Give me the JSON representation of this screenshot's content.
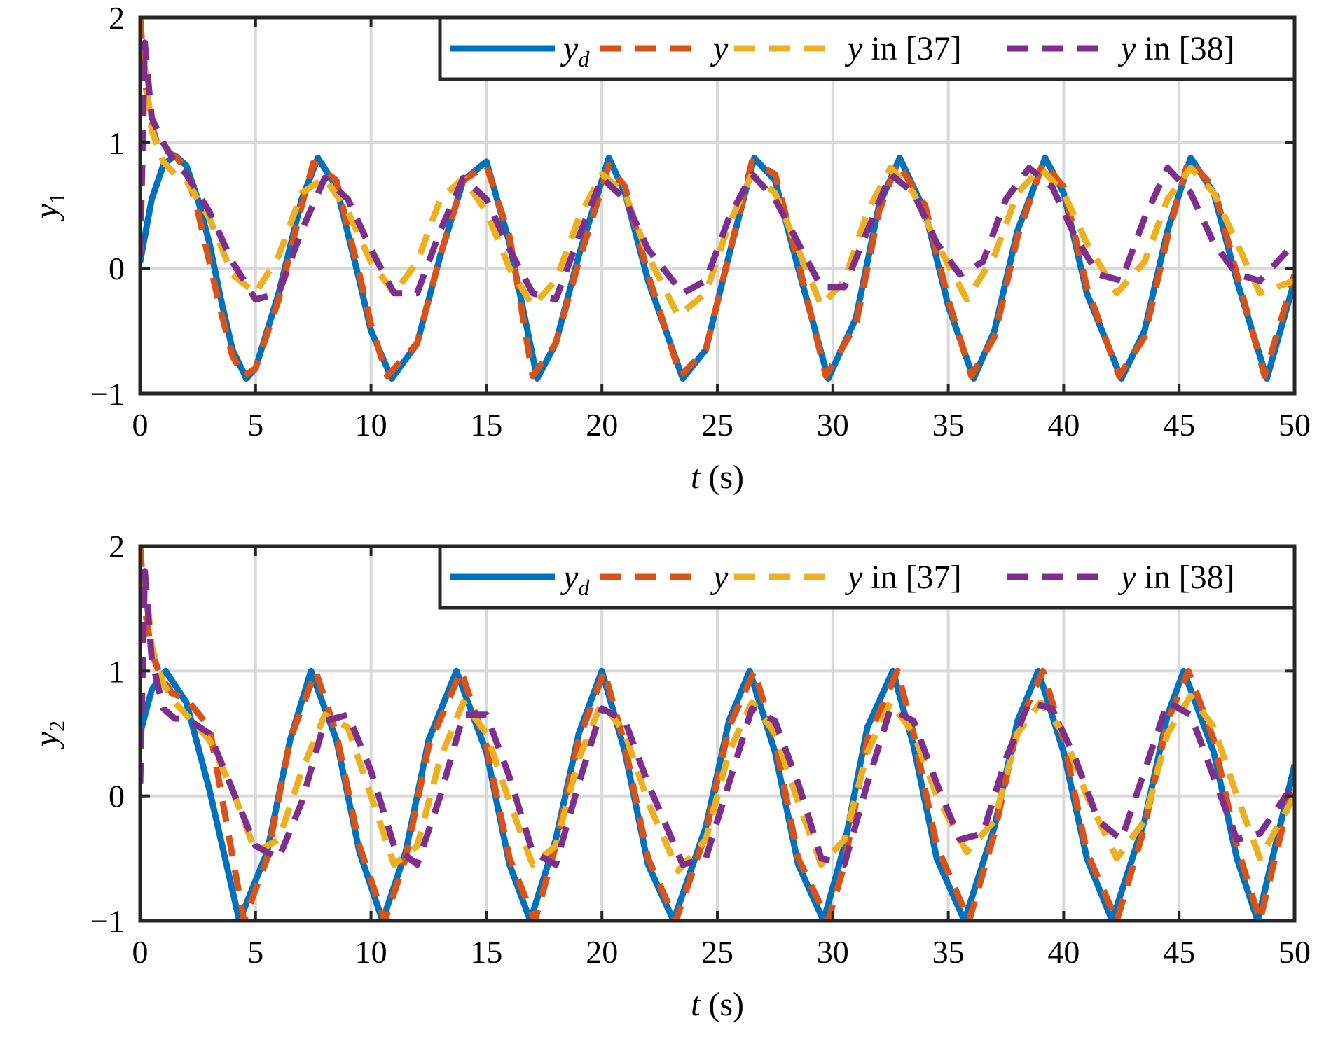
{
  "colors": {
    "y_d": "#0072BD",
    "y": "#D95319",
    "y37": "#EDB120",
    "y38": "#7E2F8E",
    "grid": "#d9d9d9",
    "axis": "#262626"
  },
  "chart_data": [
    {
      "type": "line",
      "xlabel": {
        "italic": "t",
        "rest": " (s)"
      },
      "ylabel": {
        "base": "y",
        "sub": "1"
      },
      "xlim": [
        0,
        50
      ],
      "ylim": [
        -1,
        2
      ],
      "xticks": [
        "0",
        "5",
        "10",
        "15",
        "20",
        "25",
        "30",
        "35",
        "40",
        "45",
        "50"
      ],
      "yticks": [
        "−1",
        "0",
        "1",
        "2"
      ],
      "grid": true,
      "legend_position": "top-right",
      "legend": [
        {
          "base": "y",
          "sub": "d",
          "suffix": ""
        },
        {
          "base": "y",
          "sub": "",
          "suffix": ""
        },
        {
          "base": "y",
          "sub": "",
          "suffix": " in [37]"
        },
        {
          "base": "y",
          "sub": "",
          "suffix": " in [38]"
        }
      ],
      "series": [
        {
          "key": "y_d",
          "x": [
            0,
            0.5,
            1,
            1.5,
            2,
            2.5,
            3,
            3.5,
            4,
            4.6,
            5,
            6,
            7,
            7.7,
            8.5,
            9.5,
            10,
            10.9,
            12,
            13,
            14,
            15,
            16,
            17.2,
            18,
            19,
            20.3,
            21,
            22,
            23.5,
            24.5,
            25.5,
            26.6,
            27.5,
            28.5,
            29.8,
            31,
            32,
            32.9,
            34,
            35,
            36.1,
            37,
            38,
            39.2,
            40,
            41,
            42.5,
            43.5,
            44.5,
            45.5,
            46.5,
            47.5,
            48.8,
            50
          ],
          "y": [
            0.05,
            0.55,
            0.82,
            0.9,
            0.82,
            0.55,
            0.2,
            -0.25,
            -0.65,
            -0.88,
            -0.8,
            -0.2,
            0.55,
            0.88,
            0.65,
            -0.1,
            -0.5,
            -0.88,
            -0.6,
            0.1,
            0.7,
            0.85,
            0.2,
            -0.88,
            -0.6,
            0.1,
            0.88,
            0.6,
            -0.1,
            -0.88,
            -0.65,
            0.1,
            0.88,
            0.7,
            0.0,
            -0.88,
            -0.4,
            0.5,
            0.88,
            0.45,
            -0.3,
            -0.88,
            -0.5,
            0.3,
            0.88,
            0.6,
            -0.2,
            -0.88,
            -0.5,
            0.3,
            0.88,
            0.6,
            -0.1,
            -0.88,
            -0.1
          ]
        },
        {
          "key": "y",
          "x": [
            0,
            0.2,
            0.5,
            0.8,
            1.2,
            1.6,
            2,
            2.5,
            3,
            3.5,
            4,
            4.5,
            5,
            6,
            7,
            7.5,
            8.5,
            9.5,
            10,
            10.7,
            12,
            13,
            14,
            15,
            16,
            17,
            18,
            19,
            20.3,
            21,
            22,
            23.4,
            24.5,
            25.5,
            26.5,
            27.5,
            28.5,
            29.7,
            31,
            32,
            32.8,
            34,
            35,
            36,
            37,
            38,
            39.1,
            40,
            41,
            42.4,
            43.5,
            44.5,
            45.4,
            46.5,
            47.5,
            48.7,
            50
          ],
          "y": [
            2.0,
            1.5,
            1.15,
            0.95,
            0.93,
            0.88,
            0.78,
            0.45,
            0.05,
            -0.35,
            -0.7,
            -0.86,
            -0.8,
            -0.25,
            0.5,
            0.84,
            0.7,
            -0.05,
            -0.45,
            -0.86,
            -0.6,
            0.1,
            0.7,
            0.82,
            0.25,
            -0.86,
            -0.6,
            0.05,
            0.82,
            0.65,
            -0.05,
            -0.86,
            -0.65,
            0.1,
            0.85,
            0.75,
            0.05,
            -0.86,
            -0.45,
            0.45,
            0.84,
            0.5,
            -0.25,
            -0.86,
            -0.55,
            0.25,
            0.84,
            0.65,
            -0.15,
            -0.86,
            -0.55,
            0.25,
            0.86,
            0.65,
            -0.05,
            -0.86,
            -0.05
          ]
        },
        {
          "key": "y37",
          "x": [
            0,
            0.2,
            0.5,
            1,
            1.5,
            2,
            3,
            4,
            5,
            6,
            7,
            8,
            9,
            10,
            11,
            12,
            13,
            14,
            15,
            16,
            17,
            18,
            19,
            20,
            21,
            22,
            23.3,
            24.5,
            25.5,
            26.5,
            27.5,
            28.5,
            29.5,
            30.5,
            31.5,
            32.5,
            33.5,
            34.5,
            35.8,
            37,
            38,
            39,
            40,
            41,
            42.3,
            43.5,
            44.5,
            45.5,
            46.5,
            47.5,
            48.5,
            50
          ],
          "y": [
            0.1,
            1.6,
            1.1,
            0.85,
            0.75,
            0.7,
            0.4,
            -0.05,
            -0.2,
            0.1,
            0.6,
            0.72,
            0.45,
            0.05,
            -0.2,
            0.05,
            0.55,
            0.72,
            0.45,
            0.0,
            -0.3,
            -0.1,
            0.4,
            0.75,
            0.6,
            0.1,
            -0.38,
            -0.2,
            0.35,
            0.75,
            0.6,
            0.15,
            -0.3,
            -0.1,
            0.45,
            0.8,
            0.6,
            0.2,
            -0.25,
            0.1,
            0.6,
            0.8,
            0.6,
            0.2,
            -0.2,
            0.05,
            0.55,
            0.8,
            0.6,
            0.2,
            -0.2,
            -0.1
          ]
        },
        {
          "key": "y38",
          "x": [
            0,
            0.2,
            0.5,
            1,
            1.5,
            2,
            3,
            4,
            5,
            6,
            7,
            8,
            9,
            10,
            11,
            12,
            13,
            14,
            15,
            16,
            17,
            18,
            19,
            20,
            21,
            22,
            23.5,
            24.5,
            25.5,
            26.5,
            27.5,
            28.5,
            29.5,
            30.5,
            31.5,
            32.5,
            33.5,
            34.5,
            35.5,
            36.5,
            37.5,
            38.5,
            39.5,
            40.5,
            41.5,
            42.5,
            43.5,
            44.5,
            45.5,
            46.5,
            47.5,
            48.5,
            50
          ],
          "y": [
            0.1,
            1.8,
            1.2,
            1.0,
            0.85,
            0.75,
            0.45,
            0.05,
            -0.25,
            -0.2,
            0.3,
            0.72,
            0.55,
            0.15,
            -0.2,
            -0.2,
            0.3,
            0.72,
            0.55,
            0.15,
            -0.2,
            -0.25,
            0.25,
            0.72,
            0.55,
            0.15,
            -0.2,
            -0.1,
            0.4,
            0.75,
            0.55,
            0.2,
            -0.15,
            -0.15,
            0.3,
            0.75,
            0.6,
            0.2,
            -0.05,
            0.05,
            0.55,
            0.8,
            0.65,
            0.25,
            -0.05,
            -0.1,
            0.4,
            0.8,
            0.6,
            0.2,
            -0.05,
            -0.1,
            0.2
          ]
        }
      ]
    },
    {
      "type": "line",
      "xlabel": {
        "italic": "t",
        "rest": " (s)"
      },
      "ylabel": {
        "base": "y",
        "sub": "2"
      },
      "xlim": [
        0,
        50
      ],
      "ylim": [
        -1,
        2
      ],
      "xticks": [
        "0",
        "5",
        "10",
        "15",
        "20",
        "25",
        "30",
        "35",
        "40",
        "45",
        "50"
      ],
      "yticks": [
        "−1",
        "0",
        "1",
        "2"
      ],
      "grid": true,
      "legend_position": "top-right",
      "legend": [
        {
          "base": "y",
          "sub": "d",
          "suffix": ""
        },
        {
          "base": "y",
          "sub": "",
          "suffix": ""
        },
        {
          "base": "y",
          "sub": "",
          "suffix": " in [37]"
        },
        {
          "base": "y",
          "sub": "",
          "suffix": " in [38]"
        }
      ],
      "series": [
        {
          "key": "y_d",
          "x": [
            0,
            0.5,
            1.1,
            2,
            3,
            4.3,
            5.5,
            6.5,
            7.4,
            8.5,
            9.5,
            10.5,
            11.5,
            12.5,
            13.7,
            15,
            16,
            16.9,
            18,
            19,
            20,
            21,
            22,
            23.1,
            24.5,
            25.5,
            26.4,
            27.5,
            28.5,
            29.6,
            30.5,
            31.5,
            32.6,
            33.5,
            34.5,
            35.7,
            37,
            38,
            38.9,
            40,
            41,
            42.1,
            43.5,
            44.5,
            45.2,
            46.5,
            47.5,
            48.4,
            50
          ],
          "y": [
            0.5,
            0.85,
            1.0,
            0.75,
            0.05,
            -1.0,
            -0.45,
            0.45,
            1.0,
            0.45,
            -0.45,
            -1.0,
            -0.45,
            0.45,
            1.0,
            0.35,
            -0.55,
            -1.0,
            -0.35,
            0.5,
            1.0,
            0.35,
            -0.55,
            -1.0,
            -0.25,
            0.6,
            1.0,
            0.35,
            -0.55,
            -1.0,
            -0.4,
            0.55,
            1.0,
            0.4,
            -0.5,
            -1.0,
            -0.25,
            0.6,
            1.0,
            0.35,
            -0.5,
            -1.0,
            -0.2,
            0.65,
            1.0,
            0.35,
            -0.5,
            -1.0,
            0.25
          ]
        },
        {
          "key": "y",
          "x": [
            0,
            0.2,
            0.5,
            0.9,
            1.4,
            2,
            3,
            4.5,
            5.5,
            6.5,
            7.6,
            8.5,
            9.5,
            10.6,
            11.5,
            12.5,
            13.9,
            15,
            16,
            17.1,
            18,
            19,
            20.1,
            21,
            22,
            23.2,
            24.5,
            25.5,
            26.6,
            27.5,
            28.5,
            29.8,
            30.5,
            31.5,
            32.8,
            33.5,
            34.5,
            35.9,
            37,
            38,
            39.1,
            40,
            41,
            42.3,
            43.5,
            44.5,
            45.4,
            46.5,
            47.5,
            48.5,
            50
          ],
          "y": [
            2.0,
            1.5,
            1.15,
            0.95,
            0.82,
            0.78,
            0.55,
            -1.0,
            -0.5,
            0.45,
            1.0,
            0.5,
            -0.4,
            -1.0,
            -0.5,
            0.4,
            1.0,
            0.4,
            -0.5,
            -1.0,
            -0.4,
            0.45,
            1.0,
            0.4,
            -0.5,
            -1.0,
            -0.3,
            0.55,
            1.0,
            0.45,
            -0.5,
            -1.0,
            -0.55,
            0.45,
            1.0,
            0.5,
            -0.4,
            -1.0,
            -0.3,
            0.55,
            1.0,
            0.45,
            -0.45,
            -1.0,
            -0.25,
            0.6,
            1.0,
            0.45,
            -0.4,
            -1.0,
            0.15
          ]
        },
        {
          "key": "y37",
          "x": [
            0,
            0.2,
            0.5,
            1,
            1.5,
            2,
            3,
            4,
            5,
            6,
            7,
            8,
            9,
            10,
            11,
            12,
            13,
            14,
            15,
            16,
            17,
            18,
            19,
            20,
            21,
            22,
            23.3,
            24.5,
            25.5,
            26.5,
            27.5,
            28.5,
            29.5,
            30.5,
            31.5,
            32.5,
            33.5,
            34.5,
            35.8,
            37,
            38,
            39,
            40,
            41,
            42.3,
            43.5,
            44.5,
            45.5,
            46.5,
            47.5,
            48.5,
            50
          ],
          "y": [
            0.1,
            1.8,
            1.2,
            0.9,
            0.75,
            0.65,
            0.45,
            0.05,
            -0.45,
            -0.35,
            0.2,
            0.65,
            0.55,
            0.0,
            -0.55,
            -0.4,
            0.3,
            0.75,
            0.5,
            -0.05,
            -0.55,
            -0.4,
            0.3,
            0.75,
            0.5,
            -0.05,
            -0.6,
            -0.35,
            0.35,
            0.75,
            0.5,
            -0.05,
            -0.55,
            -0.35,
            0.35,
            0.75,
            0.5,
            0.0,
            -0.45,
            -0.2,
            0.5,
            0.75,
            0.5,
            0.0,
            -0.5,
            -0.2,
            0.5,
            0.8,
            0.55,
            0.0,
            -0.5,
            0.0
          ]
        },
        {
          "key": "y38",
          "x": [
            0,
            0.2,
            0.5,
            1,
            1.5,
            2,
            3,
            4,
            5,
            6,
            7,
            8,
            9,
            10,
            11,
            12,
            13,
            14,
            15,
            16,
            17,
            18,
            19,
            20,
            21,
            22,
            23.5,
            24.5,
            25.5,
            26.5,
            27.5,
            28.5,
            29.5,
            30.5,
            31.5,
            32.5,
            33.5,
            34.5,
            35.5,
            36.5,
            37.5,
            38.5,
            39.5,
            40.5,
            41.5,
            42.5,
            43.5,
            44.5,
            45.5,
            46.5,
            47.5,
            48.5,
            50
          ],
          "y": [
            0.1,
            1.8,
            1.1,
            0.7,
            0.62,
            0.62,
            0.5,
            0.05,
            -0.4,
            -0.5,
            -0.05,
            0.6,
            0.65,
            0.2,
            -0.4,
            -0.55,
            0.0,
            0.65,
            0.65,
            0.15,
            -0.45,
            -0.55,
            0.1,
            0.7,
            0.6,
            0.1,
            -0.55,
            -0.5,
            0.1,
            0.7,
            0.6,
            0.1,
            -0.5,
            -0.55,
            0.1,
            0.7,
            0.6,
            0.1,
            -0.35,
            -0.3,
            0.3,
            0.75,
            0.7,
            0.3,
            -0.2,
            -0.35,
            0.2,
            0.75,
            0.65,
            0.15,
            -0.35,
            -0.3,
            0.1
          ]
        }
      ]
    }
  ]
}
